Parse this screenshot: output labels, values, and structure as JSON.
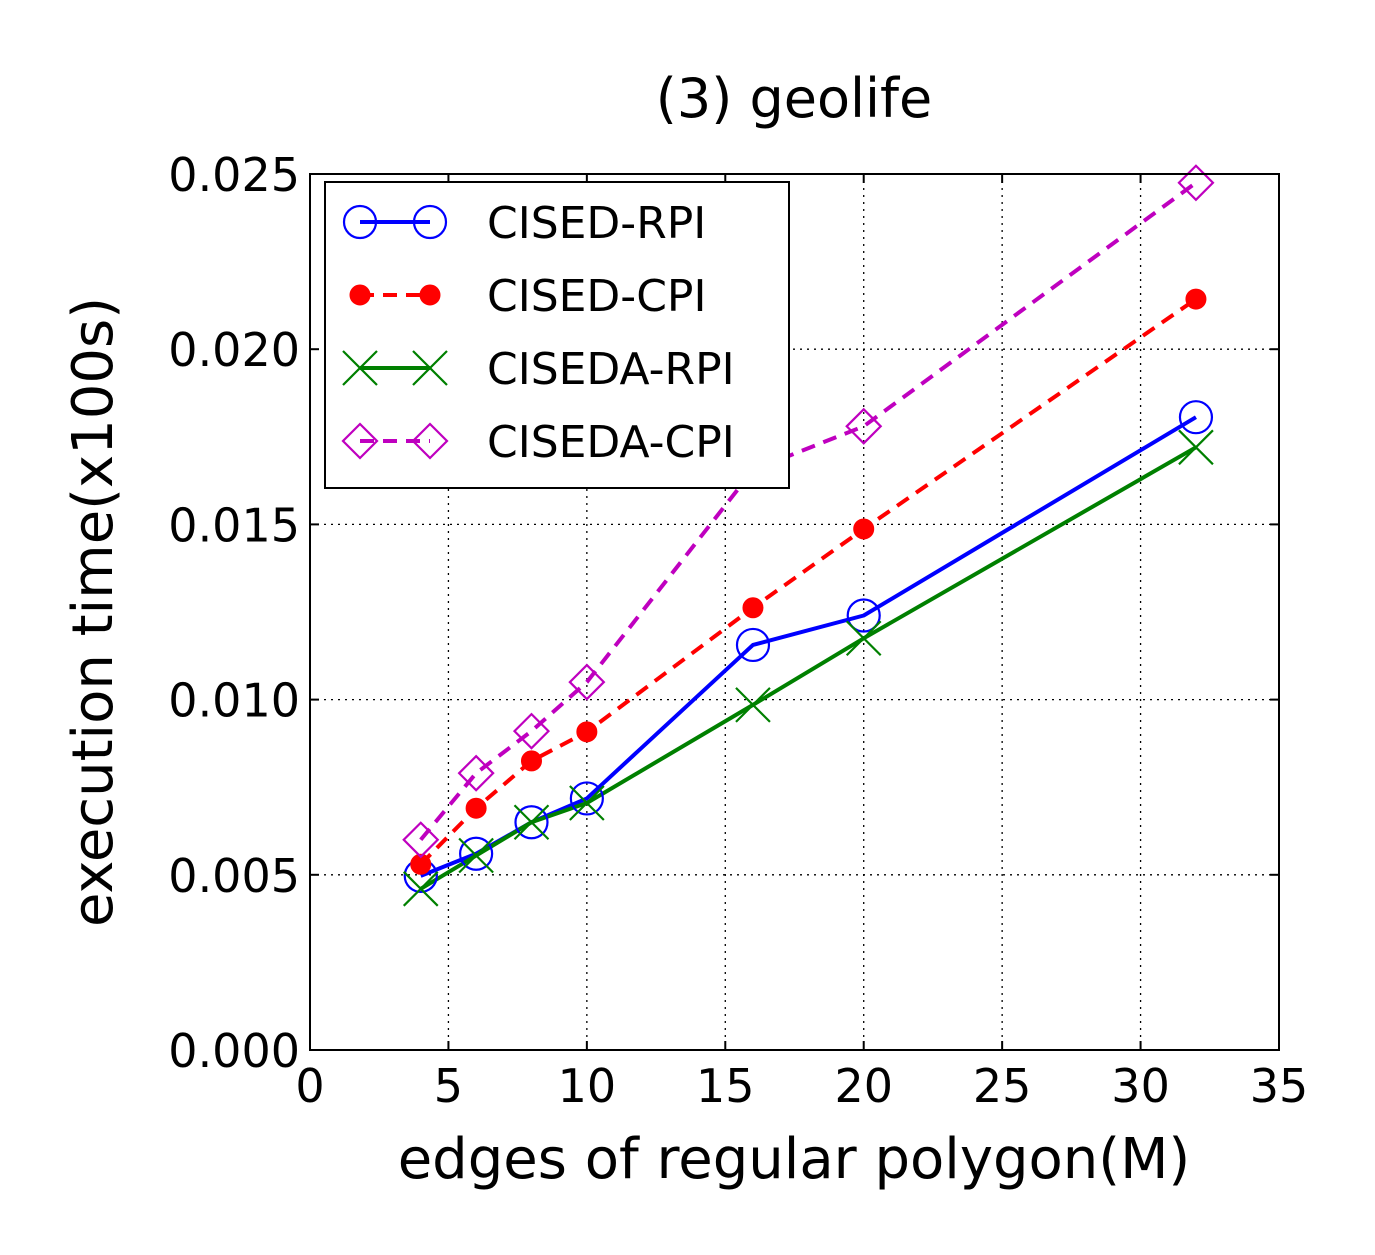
{
  "chart_data": {
    "type": "line",
    "title": "(3) geolife",
    "xlabel": "edges of regular polygon(M)",
    "ylabel": "execution time(x100s)",
    "xlim": [
      0,
      35
    ],
    "ylim": [
      0,
      0.025
    ],
    "xticks": [
      0,
      5,
      10,
      15,
      20,
      25,
      30,
      35
    ],
    "xtick_labels": [
      "0",
      "5",
      "10",
      "15",
      "20",
      "25",
      "30",
      "35"
    ],
    "yticks": [
      0,
      0.005,
      0.01,
      0.015,
      0.02,
      0.025
    ],
    "ytick_labels": [
      "0.000",
      "0.005",
      "0.010",
      "0.015",
      "0.020",
      "0.025"
    ],
    "grid": true,
    "legend_position": "top-left",
    "x": [
      4,
      6,
      8,
      10,
      16,
      20,
      32
    ],
    "series": [
      {
        "name": "CISED-RPI",
        "color": "#0000ff",
        "linestyle": "solid",
        "marker": "open-circle",
        "values": [
          0.00497,
          0.0056,
          0.0065,
          0.00718,
          0.01156,
          0.0124,
          0.01806
        ]
      },
      {
        "name": "CISED-CPI",
        "color": "#ff0000",
        "linestyle": "dashed",
        "marker": "filled-circle",
        "values": [
          0.0053,
          0.0069,
          0.00825,
          0.00908,
          0.01262,
          0.01487,
          0.02143
        ]
      },
      {
        "name": "CISEDA-RPI",
        "color": "#008000",
        "linestyle": "solid",
        "marker": "x",
        "values": [
          0.0046,
          0.00555,
          0.0065,
          0.00705,
          0.00985,
          0.01175,
          0.0172
        ]
      },
      {
        "name": "CISEDA-CPI",
        "color": "#bf00bf",
        "linestyle": "dashed",
        "marker": "open-diamond",
        "values": [
          0.006,
          0.0079,
          0.0091,
          0.0105,
          0.01655,
          0.0178,
          0.02475
        ]
      }
    ]
  }
}
